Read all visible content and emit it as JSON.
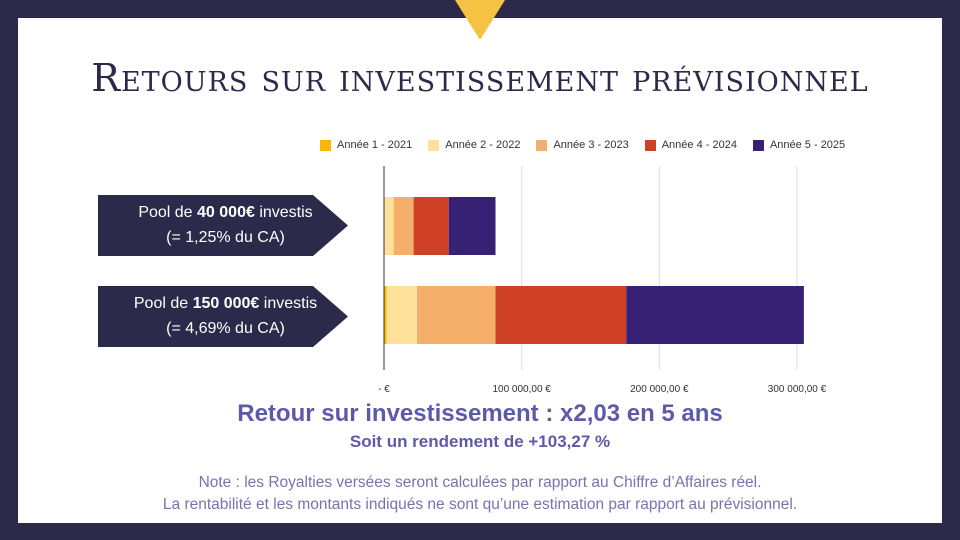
{
  "title": "Retours sur investissement prévisionnel",
  "colors": {
    "background": "#2c2a4a",
    "accent": "#f6c244",
    "text_accent": "#5e5aa8"
  },
  "labels": [
    {
      "prefix": "Pool de ",
      "amount": "40 000€",
      "suffix": " investis",
      "pct": "(= 1,25% du CA)"
    },
    {
      "prefix": "Pool de ",
      "amount": "150 000€",
      "suffix": " investis",
      "pct": "(= 4,69% du CA)"
    }
  ],
  "chart_data": {
    "type": "bar",
    "orientation": "horizontal",
    "stacked": true,
    "categories": [
      "Pool de 40 000€ investis",
      "Pool de 150 000€ investis"
    ],
    "series": [
      {
        "name": "Année 1 - 2021",
        "color": "#f6b900",
        "values": [
          500,
          2000
        ]
      },
      {
        "name": "Année 2 - 2022",
        "color": "#fde09a",
        "values": [
          6500,
          22000
        ]
      },
      {
        "name": "Année 3 - 2023",
        "color": "#f4b06a",
        "values": [
          14500,
          57000
        ]
      },
      {
        "name": "Année 4 - 2024",
        "color": "#cf4127",
        "values": [
          25500,
          95000
        ]
      },
      {
        "name": "Année 5 - 2025",
        "color": "#372175",
        "values": [
          34000,
          129000
        ]
      }
    ],
    "xlim": [
      0,
      300000
    ],
    "xticks": [
      0,
      100000,
      200000,
      300000
    ],
    "xtick_labels": [
      "-   €",
      "100 000,00   €",
      "200 000,00   €",
      "300 000,00   €"
    ],
    "grid": true,
    "legend": "top"
  },
  "roi_text": "Retour sur investissement : x2,03 en 5 ans",
  "yield_text": "Soit un rendement de +103,27 %",
  "note_line1": "Note : les Royalties versées seront calculées par rapport au Chiffre d’Affaires réel.",
  "note_line2": "La rentabilité et les montants indiqués ne sont qu’une estimation par rapport au prévisionnel."
}
